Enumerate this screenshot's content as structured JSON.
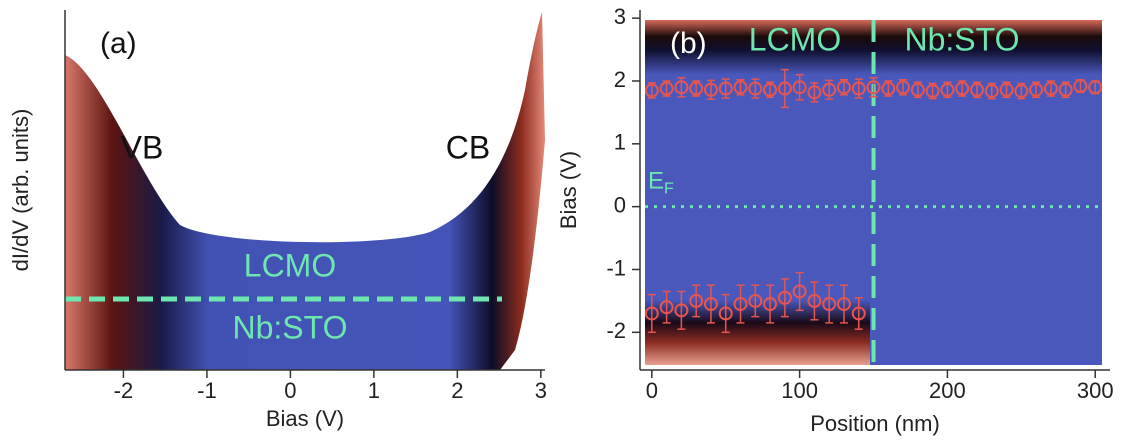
{
  "chart_data": [
    {
      "type": "waterfall",
      "label": "(a)",
      "xlabel": "Bias (V)",
      "ylabel": "dI/dV (arb. units)",
      "xlim": [
        -2.7,
        3.05
      ],
      "xticks": [
        -2,
        -1,
        0,
        1,
        2,
        3
      ],
      "annotations": [
        {
          "text": "VB",
          "color": "#111111"
        },
        {
          "text": "CB",
          "color": "#111111"
        },
        {
          "text": "LCMO",
          "color": "#6ee6b0"
        },
        {
          "text": "Nb:STO",
          "color": "#6ee6b0"
        }
      ]
    },
    {
      "type": "heatmap",
      "label": "(b)",
      "xlabel": "Position (nm)",
      "ylabel": "Bias (V)",
      "xlim": [
        -8,
        310
      ],
      "xticks": [
        0,
        100,
        200,
        300
      ],
      "ylim": [
        -2.6,
        3.13
      ],
      "yticks": [
        -2,
        -1,
        0,
        1,
        2,
        3
      ],
      "boundary_x": 150,
      "fermi_level": 0,
      "fermi_label": "E",
      "fermi_subscript": "F",
      "accent": "#6ee6b0",
      "annotations": [
        {
          "text": "LCMO"
        },
        {
          "text": "Nb:STO"
        }
      ],
      "series": [
        {
          "color": "#e8554e",
          "x": [
            0,
            10,
            20,
            30,
            40,
            50,
            60,
            70,
            80,
            90,
            100,
            110,
            120,
            130,
            140,
            150,
            160,
            170,
            180,
            190,
            200,
            210,
            220,
            230,
            240,
            250,
            260,
            270,
            280,
            290,
            300
          ],
          "values": [
            1.85,
            1.88,
            1.9,
            1.88,
            1.86,
            1.88,
            1.9,
            1.88,
            1.86,
            1.88,
            1.9,
            1.82,
            1.86,
            1.9,
            1.88,
            1.9,
            1.88,
            1.9,
            1.86,
            1.84,
            1.86,
            1.88,
            1.86,
            1.84,
            1.86,
            1.84,
            1.86,
            1.88,
            1.86,
            1.92,
            1.9
          ],
          "errors": [
            0.12,
            0.12,
            0.15,
            0.12,
            0.15,
            0.15,
            0.12,
            0.15,
            0.12,
            0.3,
            0.2,
            0.15,
            0.15,
            0.12,
            0.15,
            0.15,
            0.12,
            0.12,
            0.12,
            0.12,
            0.12,
            0.12,
            0.12,
            0.12,
            0.12,
            0.12,
            0.12,
            0.12,
            0.12,
            0.1,
            0.1
          ]
        },
        {
          "color": "#e8554e",
          "x": [
            0,
            10,
            20,
            30,
            40,
            50,
            60,
            70,
            80,
            90,
            100,
            110,
            120,
            130,
            140
          ],
          "values": [
            -1.7,
            -1.6,
            -1.65,
            -1.5,
            -1.55,
            -1.7,
            -1.55,
            -1.5,
            -1.55,
            -1.45,
            -1.35,
            -1.5,
            -1.55,
            -1.55,
            -1.7
          ],
          "errors": [
            0.3,
            0.25,
            0.3,
            0.25,
            0.3,
            0.3,
            0.3,
            0.25,
            0.3,
            0.3,
            0.3,
            0.3,
            0.3,
            0.3,
            0.25
          ]
        }
      ]
    }
  ]
}
